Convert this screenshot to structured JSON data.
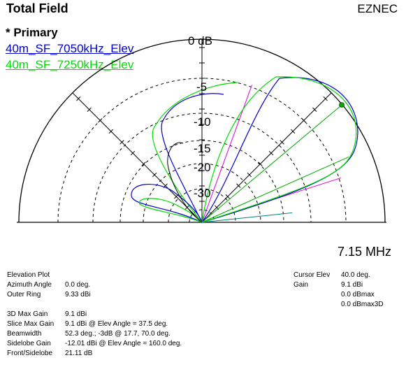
{
  "header": {
    "title": "Total Field",
    "brand": "EZNEC"
  },
  "legend": {
    "heading": "* Primary",
    "series": [
      {
        "name": "40m_SF_7050kHz_Elev",
        "color": "#0000cc"
      },
      {
        "name": "40m_SF_7250kHz_Elev",
        "color": "#00dd00"
      }
    ]
  },
  "plot": {
    "ring_labels": [
      "0 dB",
      "-5",
      "-10",
      "-15",
      "-20",
      "-30"
    ],
    "frequency": "7.15 MHz",
    "colors": {
      "grid": "#000000",
      "cursor": "#00aa00",
      "beam": "#dd00dd",
      "extra": "#008080"
    }
  },
  "info_left": {
    "title": "Elevation Plot",
    "rows1": [
      {
        "label": "Azimuth Angle",
        "value": "0.0 deg."
      },
      {
        "label": "Outer Ring",
        "value": "9.33 dBi"
      }
    ],
    "rows2": [
      {
        "label": "3D Max Gain",
        "value": "9.1 dBi"
      },
      {
        "label": "Slice Max Gain",
        "value": "9.1 dBi @ Elev Angle = 37.5 deg."
      },
      {
        "label": "Beamwidth",
        "value": "52.3 deg.; -3dB @ 17.7, 70.0 deg."
      },
      {
        "label": "Sidelobe Gain",
        "value": "-12.01 dBi @ Elev Angle = 160.0 deg."
      },
      {
        "label": "Front/Sidelobe",
        "value": "21.11 dB"
      }
    ]
  },
  "info_right": {
    "rows": [
      {
        "label": "Cursor Elev",
        "value": "40.0 deg."
      },
      {
        "label": "Gain",
        "value": "9.1 dBi"
      },
      {
        "label": "",
        "value": "0.0 dBmax"
      },
      {
        "label": "",
        "value": "0.0 dBmax3D"
      }
    ]
  }
}
